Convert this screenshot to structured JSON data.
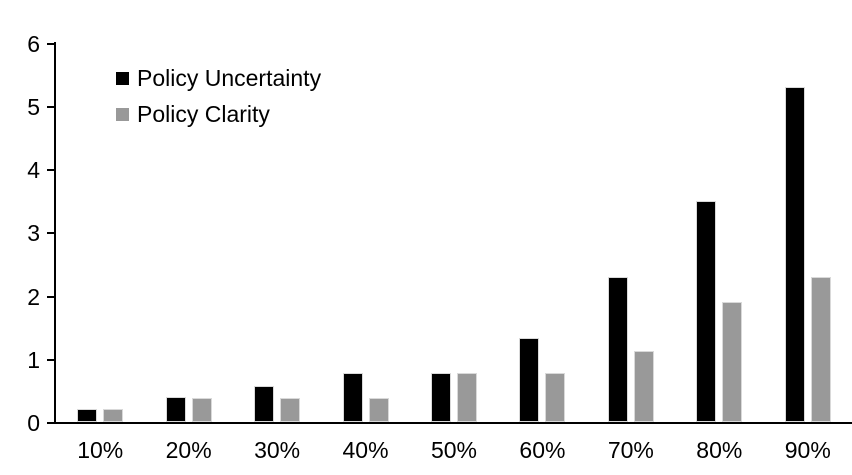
{
  "chart_data": {
    "type": "bar",
    "title": "",
    "xlabel": "",
    "ylabel": "",
    "categories": [
      "10%",
      "20%",
      "30%",
      "40%",
      "50%",
      "60%",
      "70%",
      "80%",
      "90%"
    ],
    "series": [
      {
        "name": "Policy Uncertainty",
        "color": "#000000",
        "values": [
          0.2,
          0.4,
          0.57,
          0.77,
          0.78,
          1.33,
          2.3,
          3.5,
          5.3
        ]
      },
      {
        "name": "Policy Clarity",
        "color": "#999999",
        "values": [
          0.2,
          0.38,
          0.38,
          0.38,
          0.77,
          0.77,
          1.13,
          1.9,
          2.3
        ]
      }
    ],
    "ylim": [
      0,
      6
    ],
    "yticks": [
      0,
      1,
      2,
      3,
      4,
      5,
      6
    ],
    "grid": false,
    "legend_position": "upper-left-inside",
    "colors": {
      "axis": "#000000",
      "bar_border": "#d9d9d9",
      "background": "#ffffff"
    }
  }
}
